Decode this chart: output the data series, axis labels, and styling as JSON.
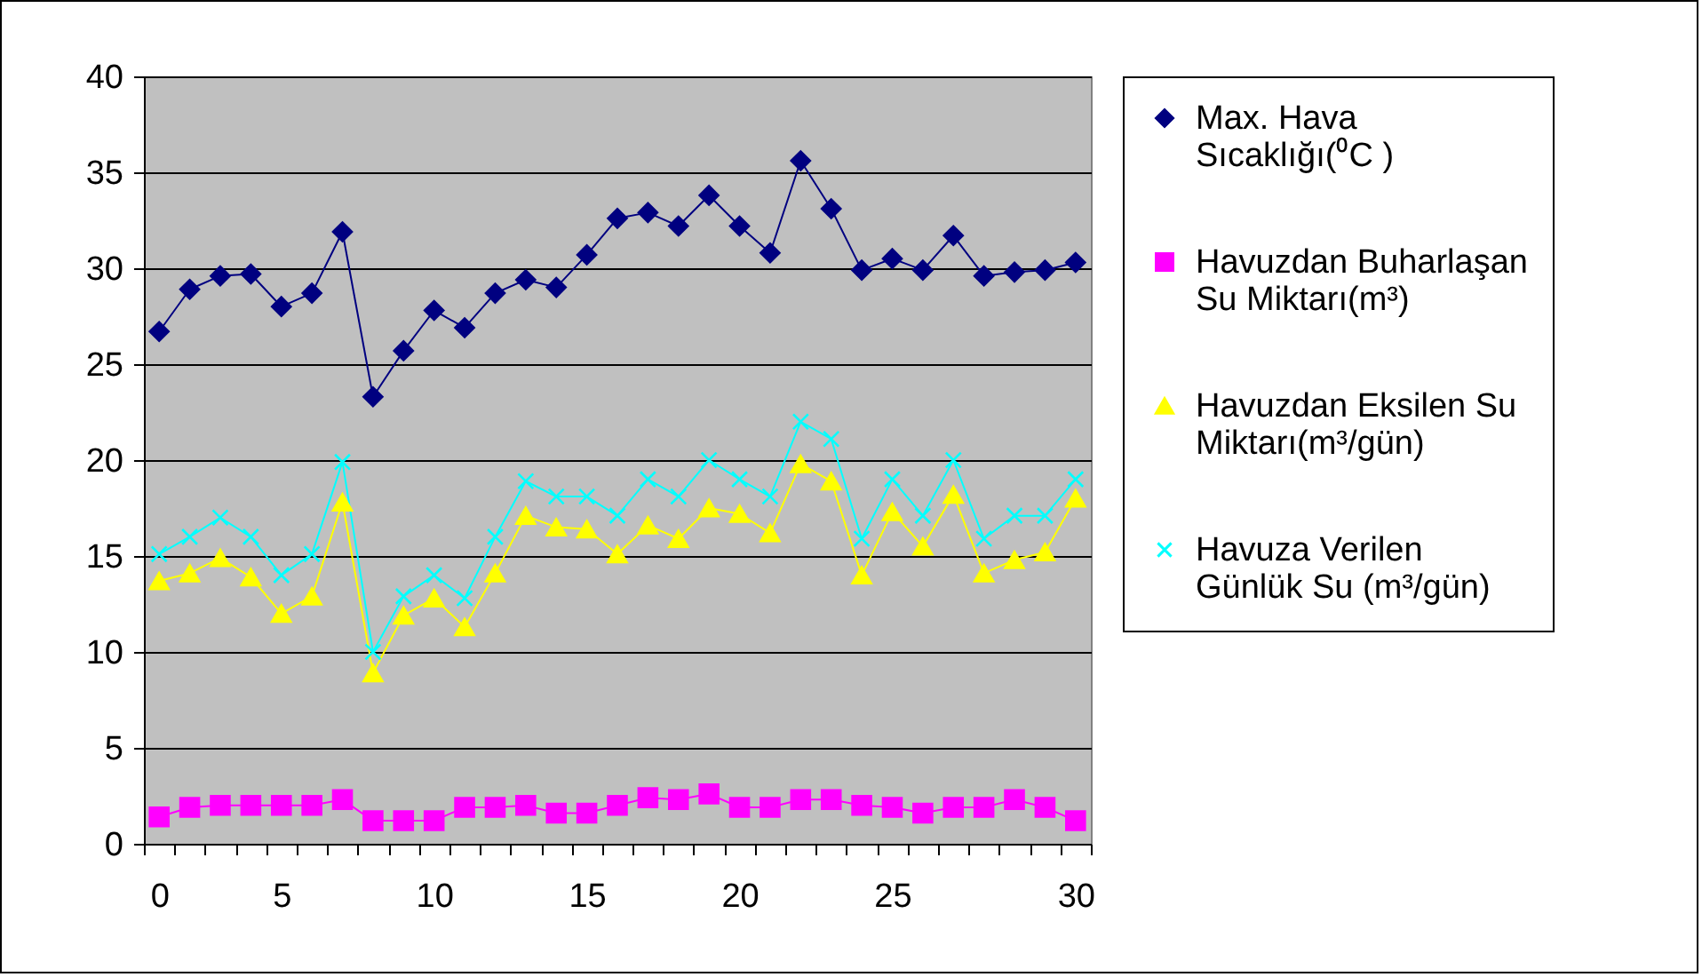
{
  "chart_data": {
    "type": "line",
    "categories": [
      "0",
      null,
      null,
      null,
      "5",
      null,
      null,
      null,
      null,
      "10",
      null,
      null,
      null,
      null,
      "15",
      null,
      null,
      null,
      null,
      "20",
      null,
      null,
      null,
      null,
      "25",
      null,
      null,
      null,
      null,
      null,
      "30"
    ],
    "series": [
      {
        "name": "Max. Hava Sıcaklığı(⁰C )",
        "color": "#000080",
        "marker": "diamond",
        "values": [
          26.7,
          28.9,
          29.6,
          29.7,
          28.0,
          28.7,
          31.9,
          23.3,
          25.7,
          27.8,
          26.9,
          28.7,
          29.4,
          29.0,
          30.7,
          32.6,
          32.9,
          32.2,
          33.8,
          32.2,
          30.8,
          35.6,
          33.1,
          29.9,
          30.5,
          29.9,
          31.7,
          29.6,
          29.8,
          29.9,
          30.3
        ]
      },
      {
        "name": "Havuzdan Buharlaşan Su Miktarı(m³)",
        "color": "#ff00ff",
        "marker": "square",
        "values": [
          1.4,
          1.9,
          2.0,
          2.0,
          2.0,
          2.0,
          2.3,
          1.2,
          1.2,
          1.2,
          1.9,
          1.9,
          2.0,
          1.6,
          1.6,
          2.0,
          2.4,
          2.3,
          2.6,
          1.9,
          1.9,
          2.3,
          2.3,
          2.0,
          1.9,
          1.6,
          1.9,
          1.9,
          2.3,
          1.9,
          1.2
        ]
      },
      {
        "name": "Havuzdan Eksilen Su Miktarı(m³/gün)",
        "color": "#ffff00",
        "marker": "triangle",
        "values": [
          13.7,
          14.1,
          14.9,
          13.9,
          12.0,
          12.9,
          17.8,
          8.9,
          11.9,
          12.8,
          11.3,
          14.1,
          17.1,
          16.5,
          16.4,
          15.1,
          16.6,
          15.9,
          17.5,
          17.2,
          16.2,
          19.8,
          18.9,
          14.0,
          17.3,
          15.5,
          18.2,
          14.1,
          14.8,
          15.2,
          18.0
        ]
      },
      {
        "name": "Havuza Verilen Günlük Su (m³/gün)",
        "color": "#00ffff",
        "marker": "cross",
        "values": [
          15.1,
          16.0,
          17.0,
          16.0,
          14.0,
          15.1,
          19.9,
          10.0,
          12.9,
          14.0,
          12.8,
          16.0,
          18.9,
          18.1,
          18.1,
          17.1,
          19.0,
          18.1,
          20.0,
          19.0,
          18.1,
          22.0,
          21.1,
          15.9,
          19.0,
          17.1,
          20.0,
          15.9,
          17.1,
          17.1,
          19.0
        ]
      }
    ],
    "ylim": [
      0,
      40
    ],
    "yticks": [
      0,
      5,
      10,
      15,
      20,
      25,
      30,
      35,
      40
    ],
    "grid": "y",
    "legend": "right"
  }
}
